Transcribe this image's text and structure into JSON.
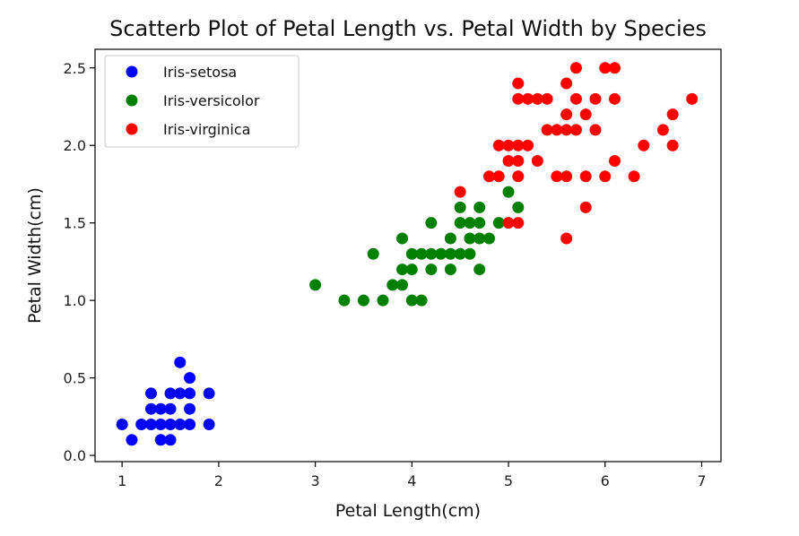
{
  "chart_data": {
    "type": "scatter",
    "title": "Scatterb Plot of Petal Length vs. Petal Width by Species",
    "xlabel": "Petal Length(cm)",
    "ylabel": "Petal Width(cm)",
    "xlim": [
      0.72,
      7.2
    ],
    "ylim": [
      -0.04,
      2.62
    ],
    "xticks": [
      1,
      2,
      3,
      4,
      5,
      6,
      7
    ],
    "xtick_labels": [
      "1",
      "2",
      "3",
      "4",
      "5",
      "6",
      "7"
    ],
    "yticks": [
      0.0,
      0.5,
      1.0,
      1.5,
      2.0,
      2.5
    ],
    "ytick_labels": [
      "0.0",
      "0.5",
      "1.0",
      "1.5",
      "2.0",
      "2.5"
    ],
    "legend_position": "top-left",
    "grid": false,
    "series": [
      {
        "name": "Iris-setosa",
        "color": "#0000ff",
        "points": [
          [
            1.0,
            0.2
          ],
          [
            1.1,
            0.1
          ],
          [
            1.2,
            0.2
          ],
          [
            1.3,
            0.2
          ],
          [
            1.3,
            0.3
          ],
          [
            1.3,
            0.4
          ],
          [
            1.4,
            0.1
          ],
          [
            1.4,
            0.2
          ],
          [
            1.4,
            0.3
          ],
          [
            1.5,
            0.1
          ],
          [
            1.5,
            0.2
          ],
          [
            1.5,
            0.3
          ],
          [
            1.5,
            0.4
          ],
          [
            1.6,
            0.2
          ],
          [
            1.6,
            0.4
          ],
          [
            1.6,
            0.6
          ],
          [
            1.7,
            0.2
          ],
          [
            1.7,
            0.3
          ],
          [
            1.7,
            0.4
          ],
          [
            1.7,
            0.5
          ],
          [
            1.9,
            0.2
          ],
          [
            1.9,
            0.4
          ]
        ]
      },
      {
        "name": "Iris-versicolor",
        "color": "#008000",
        "points": [
          [
            3.0,
            1.1
          ],
          [
            3.3,
            1.0
          ],
          [
            3.5,
            1.0
          ],
          [
            3.6,
            1.3
          ],
          [
            3.7,
            1.0
          ],
          [
            3.8,
            1.1
          ],
          [
            3.9,
            1.1
          ],
          [
            3.9,
            1.2
          ],
          [
            3.9,
            1.4
          ],
          [
            4.0,
            1.0
          ],
          [
            4.0,
            1.2
          ],
          [
            4.0,
            1.3
          ],
          [
            4.1,
            1.0
          ],
          [
            4.1,
            1.3
          ],
          [
            4.2,
            1.2
          ],
          [
            4.2,
            1.3
          ],
          [
            4.2,
            1.5
          ],
          [
            4.3,
            1.3
          ],
          [
            4.4,
            1.2
          ],
          [
            4.4,
            1.3
          ],
          [
            4.4,
            1.4
          ],
          [
            4.5,
            1.3
          ],
          [
            4.5,
            1.5
          ],
          [
            4.5,
            1.6
          ],
          [
            4.6,
            1.3
          ],
          [
            4.6,
            1.4
          ],
          [
            4.6,
            1.5
          ],
          [
            4.7,
            1.2
          ],
          [
            4.7,
            1.4
          ],
          [
            4.7,
            1.5
          ],
          [
            4.7,
            1.6
          ],
          [
            4.8,
            1.4
          ],
          [
            4.9,
            1.5
          ],
          [
            5.0,
            1.7
          ],
          [
            5.1,
            1.6
          ]
        ]
      },
      {
        "name": "Iris-virginica",
        "color": "#ff0000",
        "points": [
          [
            4.5,
            1.7
          ],
          [
            4.8,
            1.8
          ],
          [
            4.9,
            1.8
          ],
          [
            4.9,
            2.0
          ],
          [
            5.0,
            1.5
          ],
          [
            5.0,
            1.9
          ],
          [
            5.0,
            2.0
          ],
          [
            5.1,
            1.5
          ],
          [
            5.1,
            1.8
          ],
          [
            5.1,
            1.9
          ],
          [
            5.1,
            2.0
          ],
          [
            5.1,
            2.3
          ],
          [
            5.1,
            2.4
          ],
          [
            5.2,
            2.0
          ],
          [
            5.2,
            2.3
          ],
          [
            5.3,
            1.9
          ],
          [
            5.3,
            2.3
          ],
          [
            5.4,
            2.1
          ],
          [
            5.4,
            2.3
          ],
          [
            5.5,
            1.8
          ],
          [
            5.5,
            2.1
          ],
          [
            5.6,
            1.4
          ],
          [
            5.6,
            1.8
          ],
          [
            5.6,
            2.1
          ],
          [
            5.6,
            2.2
          ],
          [
            5.6,
            2.4
          ],
          [
            5.7,
            2.1
          ],
          [
            5.7,
            2.3
          ],
          [
            5.7,
            2.5
          ],
          [
            5.8,
            1.6
          ],
          [
            5.8,
            1.8
          ],
          [
            5.8,
            2.2
          ],
          [
            5.9,
            2.1
          ],
          [
            5.9,
            2.3
          ],
          [
            6.0,
            1.8
          ],
          [
            6.0,
            2.5
          ],
          [
            6.1,
            1.9
          ],
          [
            6.1,
            2.3
          ],
          [
            6.1,
            2.5
          ],
          [
            6.3,
            1.8
          ],
          [
            6.4,
            2.0
          ],
          [
            6.6,
            2.1
          ],
          [
            6.7,
            2.0
          ],
          [
            6.7,
            2.2
          ],
          [
            6.9,
            2.3
          ]
        ]
      }
    ]
  }
}
